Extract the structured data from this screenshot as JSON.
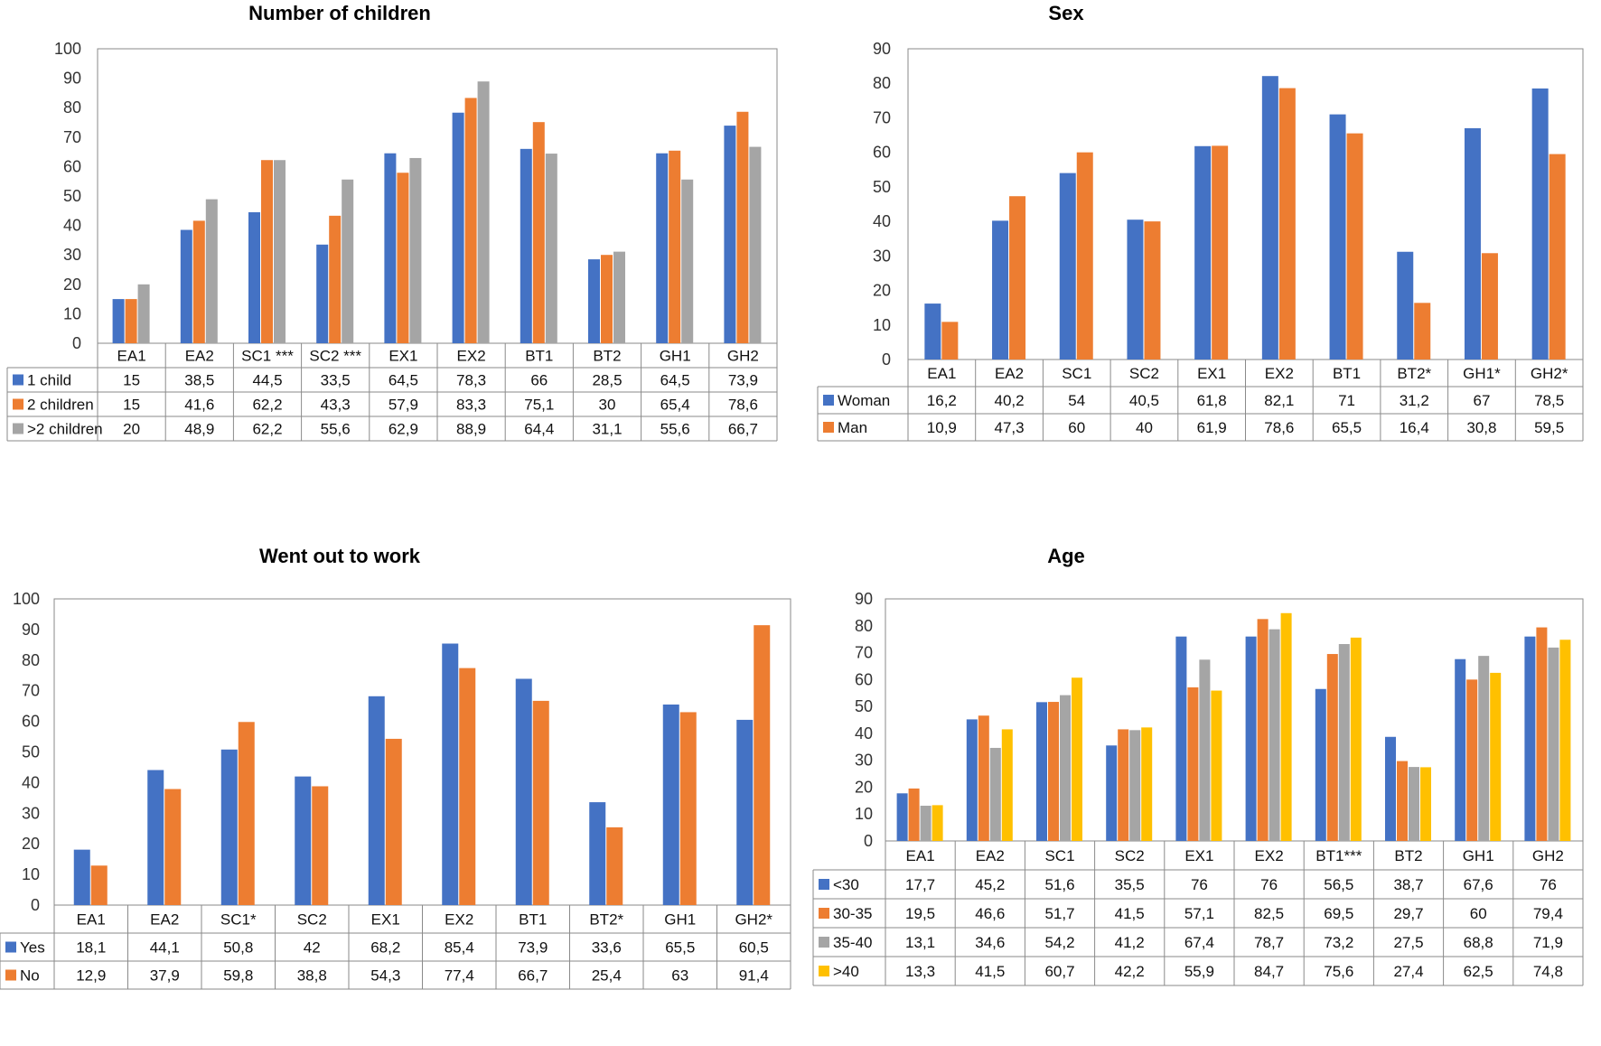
{
  "chart_data": [
    {
      "type": "bar",
      "title": "Number of children",
      "ylim": [
        0,
        100
      ],
      "yticks": [
        0,
        10,
        20,
        30,
        40,
        50,
        60,
        70,
        80,
        90,
        100
      ],
      "categories": [
        "EA1",
        "EA2",
        "SC1 ***",
        "SC2 ***",
        "EX1",
        "EX2",
        "BT1",
        "BT2",
        "GH1",
        "GH2"
      ],
      "series": [
        {
          "name": "1 child",
          "color": "#4472C4",
          "values": [
            15,
            38.5,
            44.5,
            33.5,
            64.5,
            78.3,
            66,
            28.5,
            64.5,
            73.9
          ],
          "labels": [
            "15",
            "38,5",
            "44,5",
            "33,5",
            "64,5",
            "78,3",
            "66",
            "28,5",
            "64,5",
            "73,9"
          ]
        },
        {
          "name": "2 children",
          "color": "#ED7D31",
          "values": [
            15,
            41.6,
            62.2,
            43.3,
            57.9,
            83.3,
            75.1,
            30,
            65.4,
            78.6
          ],
          "labels": [
            "15",
            "41,6",
            "62,2",
            "43,3",
            "57,9",
            "83,3",
            "75,1",
            "30",
            "65,4",
            "78,6"
          ]
        },
        {
          "name": ">2 children",
          "color": "#A5A5A5",
          "values": [
            20,
            48.9,
            62.2,
            55.6,
            62.9,
            88.9,
            64.4,
            31.1,
            55.6,
            66.7
          ],
          "labels": [
            "20",
            "48,9",
            "62,2",
            "55,6",
            "62,9",
            "88,9",
            "64,4",
            "31,1",
            "55,6",
            "66,7"
          ]
        }
      ],
      "grid": false,
      "legend": "data-table"
    },
    {
      "type": "bar",
      "title": "Sex",
      "ylim": [
        0,
        90
      ],
      "yticks": [
        0,
        10,
        20,
        30,
        40,
        50,
        60,
        70,
        80,
        90
      ],
      "categories": [
        "EA1",
        "EA2",
        "SC1",
        "SC2",
        "EX1",
        "EX2",
        "BT1",
        "BT2*",
        "GH1*",
        "GH2*"
      ],
      "series": [
        {
          "name": "Woman",
          "color": "#4472C4",
          "values": [
            16.2,
            40.2,
            54,
            40.5,
            61.8,
            82.1,
            71,
            31.2,
            67,
            78.5
          ],
          "labels": [
            "16,2",
            "40,2",
            "54",
            "40,5",
            "61,8",
            "82,1",
            "71",
            "31,2",
            "67",
            "78,5"
          ]
        },
        {
          "name": "Man",
          "color": "#ED7D31",
          "values": [
            10.9,
            47.3,
            60,
            40,
            61.9,
            78.6,
            65.5,
            16.4,
            30.8,
            59.5
          ],
          "labels": [
            "10,9",
            "47,3",
            "60",
            "40",
            "61,9",
            "78,6",
            "65,5",
            "16,4",
            "30,8",
            "59,5"
          ]
        }
      ],
      "grid": false,
      "legend": "data-table"
    },
    {
      "type": "bar",
      "title": "Went out to work",
      "ylim": [
        0,
        100
      ],
      "yticks": [
        0,
        10,
        20,
        30,
        40,
        50,
        60,
        70,
        80,
        90,
        100
      ],
      "categories": [
        "EA1",
        "EA2",
        "SC1*",
        "SC2",
        "EX1",
        "EX2",
        "BT1",
        "BT2*",
        "GH1",
        "GH2*"
      ],
      "series": [
        {
          "name": "Yes",
          "color": "#4472C4",
          "values": [
            18.1,
            44.1,
            50.8,
            42,
            68.2,
            85.4,
            73.9,
            33.6,
            65.5,
            60.5
          ],
          "labels": [
            "18,1",
            "44,1",
            "50,8",
            "42",
            "68,2",
            "85,4",
            "73,9",
            "33,6",
            "65,5",
            "60,5"
          ]
        },
        {
          "name": "No",
          "color": "#ED7D31",
          "values": [
            12.9,
            37.9,
            59.8,
            38.8,
            54.3,
            77.4,
            66.7,
            25.4,
            63,
            91.4
          ],
          "labels": [
            "12,9",
            "37,9",
            "59,8",
            "38,8",
            "54,3",
            "77,4",
            "66,7",
            "25,4",
            "63",
            "91,4"
          ]
        }
      ],
      "grid": false,
      "legend": "data-table"
    },
    {
      "type": "bar",
      "title": "Age",
      "ylim": [
        0,
        90
      ],
      "yticks": [
        0,
        10,
        20,
        30,
        40,
        50,
        60,
        70,
        80,
        90
      ],
      "categories": [
        "EA1",
        "EA2",
        "SC1",
        "SC2",
        "EX1",
        "EX2",
        "BT1***",
        "BT2",
        "GH1",
        "GH2"
      ],
      "series": [
        {
          "name": "<30",
          "color": "#4472C4",
          "values": [
            17.7,
            45.2,
            51.6,
            35.5,
            76,
            76,
            56.5,
            38.7,
            67.6,
            76
          ],
          "labels": [
            "17,7",
            "45,2",
            "51,6",
            "35,5",
            "76",
            "76",
            "56,5",
            "38,7",
            "67,6",
            "76"
          ]
        },
        {
          "name": "30-35",
          "color": "#ED7D31",
          "values": [
            19.5,
            46.6,
            51.7,
            41.5,
            57.1,
            82.5,
            69.5,
            29.7,
            60,
            79.4
          ],
          "labels": [
            "19,5",
            "46,6",
            "51,7",
            "41,5",
            "57,1",
            "82,5",
            "69,5",
            "29,7",
            "60",
            "79,4"
          ]
        },
        {
          "name": "35-40",
          "color": "#A5A5A5",
          "values": [
            13.1,
            34.6,
            54.2,
            41.2,
            67.4,
            78.7,
            73.2,
            27.5,
            68.8,
            71.9
          ],
          "labels": [
            "13,1",
            "34,6",
            "54,2",
            "41,2",
            "67,4",
            "78,7",
            "73,2",
            "27,5",
            "68,8",
            "71,9"
          ]
        },
        {
          "name": ">40",
          "color": "#FFC000",
          "values": [
            13.3,
            41.5,
            60.7,
            42.2,
            55.9,
            84.7,
            75.6,
            27.4,
            62.5,
            74.8
          ],
          "labels": [
            "13,3",
            "41,5",
            "60,7",
            "42,2",
            "55,9",
            "84,7",
            "75,6",
            "27,4",
            "62,5",
            "74,8"
          ]
        }
      ],
      "grid": false,
      "legend": "data-table"
    }
  ]
}
